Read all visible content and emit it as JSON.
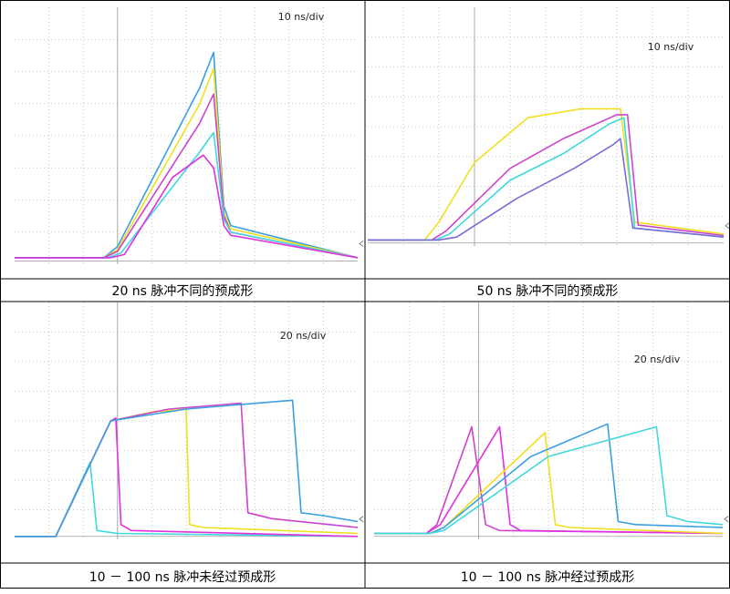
{
  "chart_data": [
    {
      "type": "line",
      "title": "20 ns 脉冲不同的预成形",
      "scale_label": "10 ns/div",
      "x_unit_per_div": "10 ns",
      "divisions": {
        "x": 10,
        "y": 8
      },
      "series": [
        {
          "color": "#3aa0e0",
          "points": [
            [
              0,
              0.2
            ],
            [
              2.6,
              0.2
            ],
            [
              3.0,
              0.55
            ],
            [
              5.4,
              5.5
            ],
            [
              5.8,
              6.6
            ],
            [
              6.1,
              1.8
            ],
            [
              6.3,
              1.2
            ],
            [
              10,
              0.2
            ]
          ]
        },
        {
          "color": "#f0e020",
          "points": [
            [
              0,
              0.2
            ],
            [
              2.6,
              0.2
            ],
            [
              3.0,
              0.45
            ],
            [
              5.4,
              5.0
            ],
            [
              5.8,
              6.1
            ],
            [
              6.1,
              1.6
            ],
            [
              6.3,
              1.1
            ],
            [
              10,
              0.2
            ]
          ]
        },
        {
          "color": "#cc44cc",
          "points": [
            [
              0,
              0.2
            ],
            [
              2.6,
              0.2
            ],
            [
              3.0,
              0.4
            ],
            [
              5.4,
              4.4
            ],
            [
              5.8,
              5.3
            ],
            [
              6.1,
              1.5
            ],
            [
              6.3,
              1.0
            ],
            [
              10,
              0.2
            ]
          ]
        },
        {
          "color": "#40d8e0",
          "points": [
            [
              0,
              0.2
            ],
            [
              2.7,
              0.2
            ],
            [
              3.1,
              0.35
            ],
            [
              5.4,
              3.5
            ],
            [
              5.8,
              4.1
            ],
            [
              6.1,
              1.4
            ],
            [
              6.3,
              1.0
            ],
            [
              10,
              0.2
            ]
          ]
        },
        {
          "color": "#e030e0",
          "points": [
            [
              0,
              0.2
            ],
            [
              2.8,
              0.2
            ],
            [
              3.2,
              0.3
            ],
            [
              4.6,
              2.7
            ],
            [
              5.5,
              3.4
            ],
            [
              5.8,
              3.0
            ],
            [
              6.1,
              1.2
            ],
            [
              6.3,
              0.9
            ],
            [
              10,
              0.2
            ]
          ]
        }
      ]
    },
    {
      "type": "line",
      "title": "50 ns  脉冲不同的预成形",
      "scale_label": "10 ns/div",
      "x_unit_per_div": "10 ns",
      "divisions": {
        "x": 10,
        "y": 8
      },
      "series": [
        {
          "color": "#f0e020",
          "points": [
            [
              0,
              0.2
            ],
            [
              1.6,
              0.2
            ],
            [
              2.0,
              0.8
            ],
            [
              3.0,
              2.8
            ],
            [
              4.5,
              4.3
            ],
            [
              6.0,
              4.6
            ],
            [
              7.1,
              4.6
            ],
            [
              7.5,
              0.8
            ],
            [
              10,
              0.4
            ]
          ]
        },
        {
          "color": "#cc44cc",
          "points": [
            [
              0,
              0.2
            ],
            [
              1.8,
              0.2
            ],
            [
              2.2,
              0.5
            ],
            [
              4.0,
              2.6
            ],
            [
              5.5,
              3.6
            ],
            [
              7.0,
              4.4
            ],
            [
              7.3,
              4.4
            ],
            [
              7.6,
              0.7
            ],
            [
              10,
              0.35
            ]
          ]
        },
        {
          "color": "#40d8e0",
          "points": [
            [
              0,
              0.2
            ],
            [
              1.9,
              0.2
            ],
            [
              2.3,
              0.4
            ],
            [
              4.0,
              2.2
            ],
            [
              5.5,
              3.1
            ],
            [
              6.8,
              4.1
            ],
            [
              7.2,
              4.3
            ],
            [
              7.5,
              0.6
            ],
            [
              10,
              0.3
            ]
          ]
        },
        {
          "color": "#7a6cd8",
          "points": [
            [
              0,
              0.2
            ],
            [
              2.0,
              0.2
            ],
            [
              2.5,
              0.3
            ],
            [
              4.2,
              1.6
            ],
            [
              5.8,
              2.6
            ],
            [
              6.9,
              3.4
            ],
            [
              7.1,
              3.6
            ],
            [
              7.45,
              0.6
            ],
            [
              10,
              0.3
            ]
          ]
        }
      ]
    },
    {
      "type": "line",
      "title": "10 － 100 ns  脉冲未经过预成形",
      "scale_label": "20 ns/div",
      "x_unit_per_div": "20 ns",
      "divisions": {
        "x": 10,
        "y": 8
      },
      "series": [
        {
          "color": "#40d8e0",
          "points": [
            [
              0,
              0.1
            ],
            [
              1.2,
              0.1
            ],
            [
              2.2,
              2.6
            ],
            [
              2.4,
              0.3
            ],
            [
              3.0,
              0.2
            ],
            [
              10,
              0.1
            ]
          ]
        },
        {
          "color": "#e030e0",
          "points": [
            [
              0,
              0.1
            ],
            [
              1.2,
              0.1
            ],
            [
              2.8,
              4.0
            ],
            [
              2.95,
              4.1
            ],
            [
              3.1,
              0.5
            ],
            [
              3.4,
              0.3
            ],
            [
              10,
              0.1
            ]
          ]
        },
        {
          "color": "#f0e020",
          "points": [
            [
              0,
              0.1
            ],
            [
              1.2,
              0.1
            ],
            [
              2.8,
              4.0
            ],
            [
              4.0,
              4.3
            ],
            [
              5.0,
              4.4
            ],
            [
              5.1,
              0.5
            ],
            [
              5.5,
              0.4
            ],
            [
              10,
              0.2
            ]
          ]
        },
        {
          "color": "#cc44cc",
          "points": [
            [
              0,
              0.1
            ],
            [
              1.2,
              0.1
            ],
            [
              2.8,
              4.0
            ],
            [
              4.5,
              4.4
            ],
            [
              6.6,
              4.6
            ],
            [
              6.8,
              0.9
            ],
            [
              7.5,
              0.7
            ],
            [
              10,
              0.4
            ]
          ]
        },
        {
          "color": "#3aa0e0",
          "points": [
            [
              0,
              0.1
            ],
            [
              1.2,
              0.1
            ],
            [
              2.8,
              4.0
            ],
            [
              5.0,
              4.4
            ],
            [
              8.1,
              4.7
            ],
            [
              8.35,
              0.9
            ],
            [
              9.0,
              0.8
            ],
            [
              10,
              0.6
            ]
          ]
        }
      ]
    },
    {
      "type": "line",
      "title": "10 － 100 ns  脉冲经过预成形",
      "scale_label": "20 ns/div",
      "x_unit_per_div": "20 ns",
      "divisions": {
        "x": 10,
        "y": 8
      },
      "series": [
        {
          "color": "#cc44cc",
          "points": [
            [
              0,
              0.2
            ],
            [
              1.5,
              0.2
            ],
            [
              1.8,
              0.5
            ],
            [
              2.8,
              3.8
            ],
            [
              3.2,
              0.5
            ],
            [
              3.6,
              0.3
            ],
            [
              10,
              0.2
            ]
          ]
        },
        {
          "color": "#e030e0",
          "points": [
            [
              0,
              0.2
            ],
            [
              1.5,
              0.2
            ],
            [
              1.9,
              0.5
            ],
            [
              3.6,
              3.8
            ],
            [
              3.9,
              0.5
            ],
            [
              4.2,
              0.3
            ],
            [
              10,
              0.2
            ]
          ]
        },
        {
          "color": "#f0e020",
          "points": [
            [
              0,
              0.2
            ],
            [
              1.6,
              0.2
            ],
            [
              2.0,
              0.4
            ],
            [
              4.9,
              3.6
            ],
            [
              5.2,
              0.5
            ],
            [
              5.6,
              0.4
            ],
            [
              10,
              0.2
            ]
          ]
        },
        {
          "color": "#3aa0e0",
          "points": [
            [
              0,
              0.2
            ],
            [
              1.6,
              0.2
            ],
            [
              2.0,
              0.4
            ],
            [
              4.5,
              2.8
            ],
            [
              6.7,
              3.9
            ],
            [
              7.0,
              0.6
            ],
            [
              7.5,
              0.5
            ],
            [
              10,
              0.4
            ]
          ]
        },
        {
          "color": "#40d8e0",
          "points": [
            [
              0,
              0.2
            ],
            [
              1.6,
              0.2
            ],
            [
              2.0,
              0.3
            ],
            [
              5.0,
              2.8
            ],
            [
              8.1,
              3.8
            ],
            [
              8.4,
              0.8
            ],
            [
              9.0,
              0.6
            ],
            [
              10,
              0.5
            ]
          ]
        }
      ]
    }
  ]
}
